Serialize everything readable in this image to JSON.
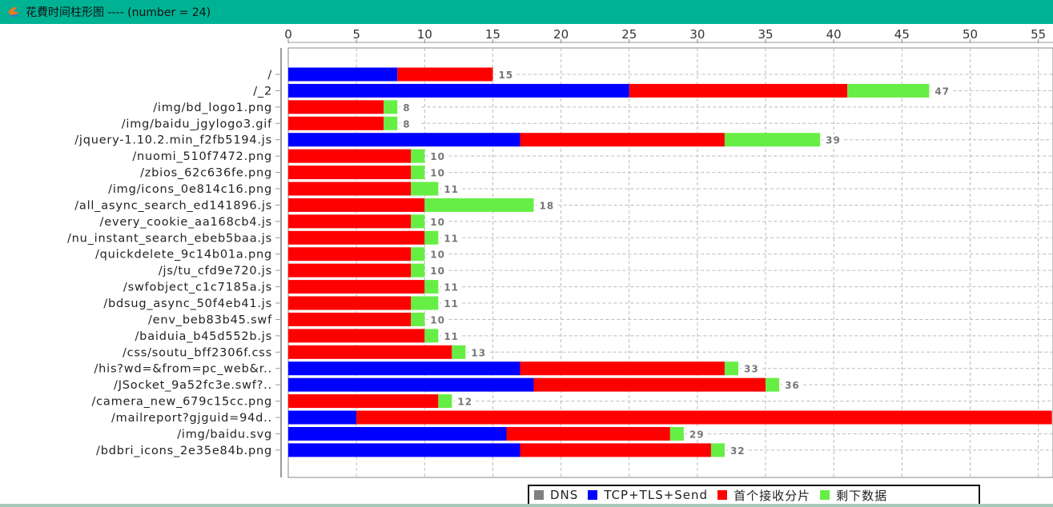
{
  "window": {
    "title": "花費时间柱形图 ----  (number = 24)"
  },
  "chart_data": {
    "type": "bar",
    "orientation": "horizontal",
    "stacked": true,
    "xlim": [
      0,
      56
    ],
    "x_ticks": [
      0,
      5,
      10,
      15,
      20,
      25,
      30,
      35,
      40,
      45,
      50,
      55
    ],
    "grid": true,
    "legend_position": "bottom-right",
    "legend": [
      {
        "name": "DNS",
        "color": "#808080"
      },
      {
        "name": "TCP+TLS+Send",
        "color": "#0000ff"
      },
      {
        "name": "首个接收分片",
        "color": "#ff0000"
      },
      {
        "name": "剩下数据",
        "color": "#66ee44"
      }
    ],
    "categories": [
      "/",
      "/_2",
      "/img/bd_logo1.png",
      "/img/baidu_jgylogo3.gif",
      "/jquery-1.10.2.min_f2fb5194.js",
      "/nuomi_510f7472.png",
      "/zbios_62c636fe.png",
      "/img/icons_0e814c16.png",
      "/all_async_search_ed141896.js",
      "/every_cookie_aa168cb4.js",
      "/nu_instant_search_ebeb5baa.js",
      "/quickdelete_9c14b01a.png",
      "/js/tu_cfd9e720.js",
      "/swfobject_c1c7185a.js",
      "/bdsug_async_50f4eb41.js",
      "/env_beb83b45.swf",
      "/baiduia_b45d552b.js",
      "/css/soutu_bff2306f.css",
      "/his?wd=&from=pc_web&r..",
      "/JSocket_9a52fc3e.swf?..",
      "/camera_new_679c15cc.png",
      "/mailreport?gjguid=94d..",
      "/img/baidu.svg",
      "/bdbri_icons_2e35e84b.png"
    ],
    "series": [
      {
        "name": "DNS",
        "values": [
          0,
          0,
          0,
          0,
          0,
          0,
          0,
          0,
          0,
          0,
          0,
          0,
          0,
          0,
          0,
          0,
          0,
          0,
          0,
          0,
          0,
          0,
          0,
          0
        ]
      },
      {
        "name": "TCP+TLS+Send",
        "values": [
          8,
          25,
          0,
          0,
          17,
          0,
          0,
          0,
          0,
          0,
          0,
          0,
          0,
          0,
          0,
          0,
          0,
          0,
          17,
          18,
          0,
          5,
          16,
          17
        ]
      },
      {
        "name": "首个接收分片",
        "values": [
          7,
          16,
          7,
          7,
          15,
          9,
          9,
          9,
          10,
          9,
          10,
          9,
          9,
          10,
          9,
          9,
          10,
          12,
          15,
          17,
          11,
          51,
          12,
          14
        ]
      },
      {
        "name": "剩下数据",
        "values": [
          0,
          6,
          1,
          1,
          7,
          1,
          1,
          2,
          8,
          1,
          1,
          1,
          1,
          1,
          2,
          1,
          1,
          1,
          1,
          1,
          1,
          0,
          1,
          1
        ]
      }
    ],
    "value_labels": [
      "15",
      "47",
      "8",
      "8",
      "39",
      "10",
      "10",
      "11",
      "18",
      "10",
      "11",
      "10",
      "10",
      "11",
      "11",
      "10",
      "11",
      "13",
      "33",
      "36",
      "12",
      null,
      "29",
      "32"
    ]
  }
}
